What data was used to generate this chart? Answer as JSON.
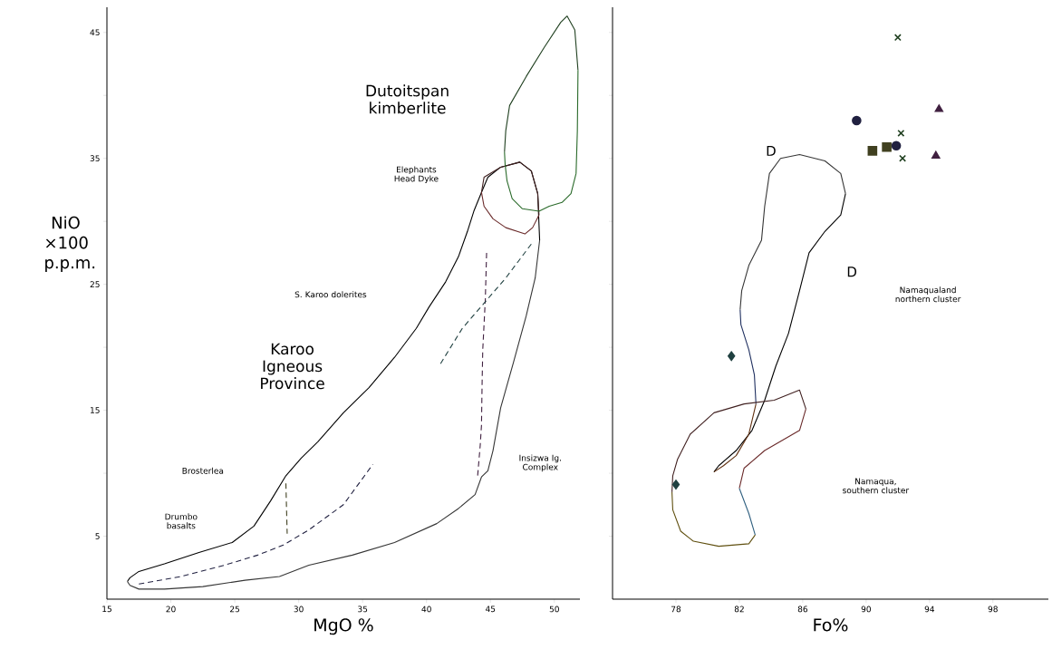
{
  "chart_data": [
    {
      "type": "line",
      "xlabel": "MgO %",
      "ylabel": "NiO ×100 p.p.m.",
      "xlim": [
        15,
        52
      ],
      "ylim": [
        0,
        47
      ],
      "xticks": [
        15,
        20,
        25,
        30,
        35,
        40,
        45,
        50
      ],
      "yticks": [
        5,
        {
          "value": 10,
          "label": null
        },
        15,
        {
          "value": 20,
          "label": null
        },
        25,
        {
          "value": 30,
          "label": null
        },
        35,
        {
          "value": 40,
          "label": null
        },
        45
      ],
      "series": [
        {
          "color": "#000000",
          "line_style": "solid",
          "x": [
            16.6,
            16.8,
            17.5,
            19.5,
            22.2,
            24.8,
            26.5,
            27.8,
            29.0,
            30.2,
            31.5,
            33.5,
            35.5,
            37.5,
            39.2,
            40.2,
            41.5,
            42.5,
            43.2,
            43.7,
            44.3,
            44.8,
            45.8,
            47.3,
            48.2,
            48.7,
            48.85
          ],
          "values": [
            1.4,
            1.7,
            2.2,
            2.8,
            3.7,
            4.5,
            5.8,
            7.8,
            9.8,
            11.2,
            12.5,
            14.8,
            16.8,
            19.2,
            21.5,
            23.2,
            25.2,
            27.2,
            29.2,
            30.8,
            32.3,
            33.5,
            34.3,
            34.7,
            34.0,
            32.2,
            28.5
          ]
        },
        {
          "color": "#363636",
          "line_style": "solid",
          "x": [
            48.85,
            48.5,
            47.8,
            46.8,
            45.8,
            45.2,
            44.8,
            44.3,
            43.8,
            42.5,
            40.8,
            37.5,
            34.2,
            30.8,
            28.5,
            25.8,
            22.5,
            19.5,
            17.5,
            16.8,
            16.6
          ],
          "values": [
            28.5,
            25.5,
            22.5,
            18.8,
            15.2,
            11.8,
            10.2,
            9.7,
            8.3,
            7.2,
            6.0,
            4.5,
            3.5,
            2.7,
            1.8,
            1.5,
            1.0,
            0.8,
            0.8,
            1.1,
            1.4
          ]
        },
        {
          "color": "#402020",
          "line_style": "solid",
          "x": [
            44.3,
            44.5,
            45.8,
            47.3,
            48.2,
            48.7,
            48.8
          ],
          "values": [
            32.3,
            33.5,
            34.3,
            34.7,
            34.0,
            32.2,
            30.5
          ]
        },
        {
          "color": "#6a2a2a",
          "line_style": "solid",
          "x": [
            48.8,
            48.3,
            47.7,
            46.2,
            45.2,
            44.5,
            44.3
          ],
          "values": [
            30.5,
            29.5,
            29.0,
            29.5,
            30.2,
            31.2,
            32.3
          ]
        },
        {
          "color": "#204020",
          "line_style": "solid",
          "x": [
            46.1,
            46.2,
            46.5,
            47.8,
            49.2,
            50.5,
            51.0,
            51.6,
            51.85
          ],
          "values": [
            35.5,
            37.2,
            39.2,
            41.5,
            43.8,
            45.8,
            46.3,
            45.2,
            42.0
          ]
        },
        {
          "color": "#2a6a2a",
          "line_style": "solid",
          "x": [
            51.85,
            51.8,
            51.7,
            51.3,
            50.6,
            49.6,
            48.8,
            47.5,
            46.7,
            46.3,
            46.15,
            46.1
          ],
          "values": [
            42.0,
            37.2,
            33.8,
            32.2,
            31.5,
            31.2,
            30.8,
            31.0,
            31.8,
            33.2,
            34.5,
            35.5
          ]
        },
        {
          "color": "#202040",
          "line_style": "dashed",
          "x": [
            17.5,
            20.8,
            24.2,
            26.8,
            28.8,
            30.8,
            33.5,
            35.8
          ],
          "values": [
            1.2,
            1.8,
            2.7,
            3.5,
            4.3,
            5.5,
            7.5,
            10.7
          ]
        },
        {
          "color": "#404020",
          "line_style": "dashed",
          "x": [
            29.0,
            29.1
          ],
          "values": [
            9.2,
            5.2
          ]
        },
        {
          "color": "#402040",
          "line_style": "dashed",
          "x": [
            44.7,
            44.6,
            44.4,
            44.35,
            44.3,
            44.2,
            44.0
          ],
          "values": [
            27.5,
            23.8,
            19.8,
            17.2,
            13.8,
            12.2,
            9.8
          ]
        },
        {
          "color": "#204040",
          "line_style": "dashed",
          "x": [
            41.1,
            42.8,
            44.5,
            46.2,
            48.2
          ],
          "values": [
            18.7,
            21.5,
            23.5,
            25.5,
            28.2
          ]
        }
      ],
      "annotations": [
        "Dutoitspan kimberlite",
        "Elephants Head Dyke",
        "S. Karoo dolerites",
        "Karoo Igneous Province",
        "Brosterlea",
        "Drumbo basalts",
        "Insizwa Ig. Complex"
      ]
    },
    {
      "type": "scatter",
      "xlabel": "Fo%",
      "xlim": [
        74,
        101.5
      ],
      "ylim": [
        0,
        47
      ],
      "tick_labels": "x",
      "xticks": [
        78,
        82,
        86,
        90,
        94,
        98
      ],
      "yticks": [
        {
          "value": 5,
          "label": null
        },
        {
          "value": 10,
          "label": null
        },
        {
          "value": 15,
          "label": null
        },
        {
          "value": 20,
          "label": null
        },
        {
          "value": 25,
          "label": null
        },
        {
          "value": 30,
          "label": null
        },
        {
          "value": 35,
          "label": null
        },
        {
          "value": 40,
          "label": null
        },
        {
          "value": 45,
          "label": null
        }
      ],
      "series": [
        {
          "type": "line",
          "color": "#000000",
          "line_style": "solid",
          "x": [
            80.4,
            80.7,
            81.8,
            82.8,
            83.6,
            84.3,
            85.1,
            85.8,
            86.4,
            87.4,
            88.4,
            88.7
          ],
          "values": [
            10.1,
            10.6,
            11.8,
            13.4,
            15.8,
            18.5,
            21.1,
            24.5,
            27.5,
            29.2,
            30.5,
            32.2
          ]
        },
        {
          "type": "line",
          "color": "#363636",
          "line_style": "solid",
          "x": [
            88.7,
            88.4,
            87.4,
            85.8,
            84.6,
            83.9,
            83.6,
            83.4,
            82.6,
            82.15,
            82.05
          ],
          "values": [
            32.2,
            33.8,
            34.8,
            35.3,
            35.0,
            33.8,
            31.2,
            28.5,
            26.5,
            24.5,
            23.0
          ]
        },
        {
          "type": "line",
          "color": "#203060",
          "line_style": "solid",
          "x": [
            82.05,
            82.1,
            82.6,
            82.95,
            83.05
          ],
          "values": [
            23.0,
            21.8,
            19.8,
            17.8,
            15.5
          ]
        },
        {
          "type": "line",
          "color": "#603010",
          "line_style": "solid",
          "x": [
            83.05,
            82.6,
            81.8,
            81.0,
            80.4
          ],
          "values": [
            15.5,
            13.1,
            11.4,
            10.6,
            10.1
          ]
        },
        {
          "type": "line",
          "color": "#402020",
          "line_style": "solid",
          "x": [
            77.75,
            77.8,
            78.1,
            78.9,
            80.4,
            82.3,
            84.2,
            85.8,
            86.2
          ],
          "values": [
            8.5,
            9.8,
            11.1,
            13.1,
            14.8,
            15.5,
            15.8,
            16.6,
            15.1
          ]
        },
        {
          "type": "line",
          "color": "#6a2a2a",
          "line_style": "solid",
          "x": [
            86.2,
            85.8,
            83.6,
            82.3,
            82.0
          ],
          "values": [
            15.1,
            13.4,
            11.8,
            10.4,
            8.8
          ]
        },
        {
          "type": "line",
          "color": "#306080",
          "line_style": "solid",
          "x": [
            82.0,
            82.6,
            83.0
          ],
          "values": [
            8.8,
            6.8,
            5.1
          ]
        },
        {
          "type": "line",
          "color": "#605010",
          "line_style": "solid",
          "x": [
            83.0,
            82.6,
            80.7,
            79.1,
            78.3,
            77.8,
            77.75
          ],
          "values": [
            5.1,
            4.4,
            4.2,
            4.6,
            5.4,
            7.1,
            8.5
          ]
        },
        {
          "color": "#204020",
          "marker": "cross",
          "x": [
            92.0,
            92.2,
            92.3
          ],
          "values": [
            44.6,
            37.0,
            35.0
          ]
        },
        {
          "color": "#202040",
          "marker": "circle",
          "x": [
            89.4,
            91.9
          ],
          "values": [
            38.0,
            36.0
          ]
        },
        {
          "color": "#404020",
          "marker": "square",
          "x": [
            90.4,
            91.3
          ],
          "values": [
            35.6,
            35.9
          ]
        },
        {
          "color": "#402040",
          "marker": "triangle",
          "x": [
            94.6,
            94.4
          ],
          "values": [
            38.9,
            35.2
          ]
        },
        {
          "color": "#204040",
          "marker": "diamond",
          "x": [
            81.5,
            78.0
          ],
          "values": [
            19.3,
            9.1
          ]
        }
      ],
      "annotations": [
        "D",
        "D",
        "Namaqualand northern cluster",
        "Namaqua, southern cluster"
      ]
    }
  ]
}
